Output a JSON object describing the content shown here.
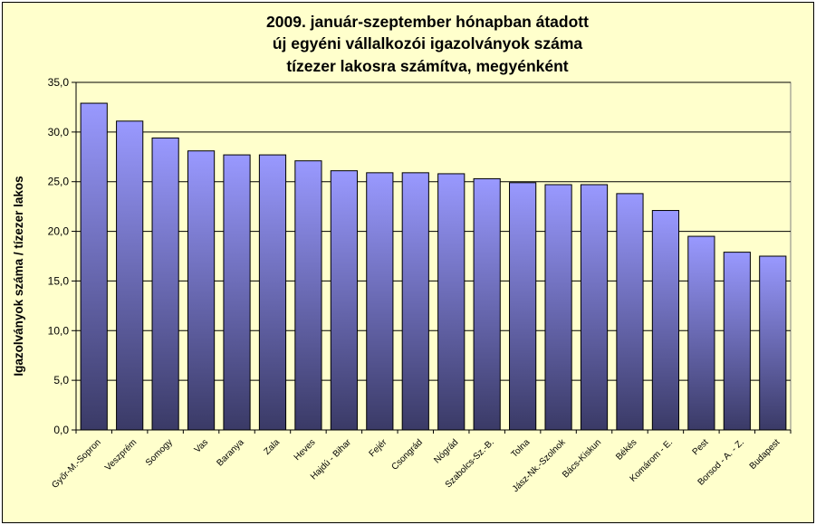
{
  "chart_data": {
    "type": "bar",
    "title_lines": [
      "2009. január-szeptember hónapban átadott",
      "új egyéni vállalkozói  igazolványok száma",
      "tízezer lakosra számítva, megyénként"
    ],
    "ylabel": "Igazolványok száma / tízezer lakos",
    "xlabel": "",
    "ylim": [
      0,
      35
    ],
    "ytick_values": [
      0,
      5,
      10,
      15,
      20,
      25,
      30,
      35
    ],
    "ytick_labels": [
      "0,0",
      "5,0",
      "10,0",
      "15,0",
      "20,0",
      "25,0",
      "30,0",
      "35,0"
    ],
    "grid": true,
    "legend": "none",
    "categories": [
      "Győr-M.-Sopron",
      "Veszprém",
      "Somogy",
      "Vas",
      "Baranya",
      "Zala",
      "Heves",
      "Hajdú - Bihar",
      "Fejér",
      "Csongrád",
      "Nógrád",
      "Szabolcs-Sz.-B.",
      "Tolna",
      "Jász-Nk.-Szolnok",
      "Bács-Kiskun",
      "Békés",
      "Komárom - E.",
      "Pest",
      "Borsod - A. - Z.",
      "Budapest"
    ],
    "values": [
      32.9,
      31.1,
      29.4,
      28.1,
      27.7,
      27.7,
      27.1,
      26.1,
      25.9,
      25.9,
      25.8,
      25.3,
      24.9,
      24.7,
      24.7,
      23.8,
      22.1,
      19.5,
      17.9,
      17.5
    ],
    "colors": {
      "plot_background": "#ffffcc",
      "bar_top": "#9999ff",
      "bar_bottom": "#3a3a66",
      "bar_border": "#000000",
      "gridline": "#000000"
    }
  }
}
